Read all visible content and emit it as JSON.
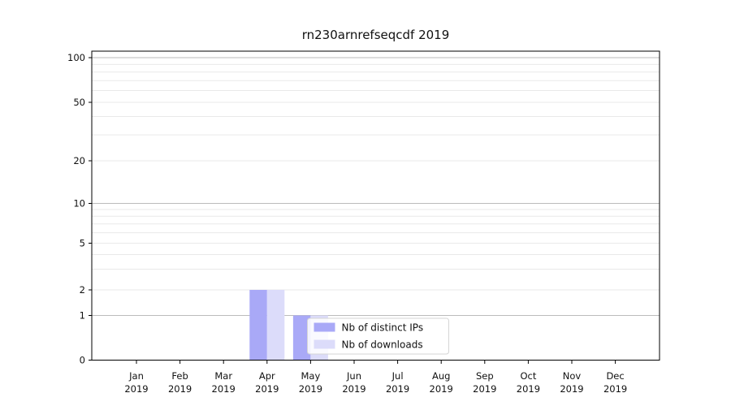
{
  "title": "rn230arnrefseqcdf 2019",
  "chart_data": {
    "type": "bar",
    "title": "rn230arnrefseqcdf 2019",
    "categories": [
      "Jan",
      "Feb",
      "Mar",
      "Apr",
      "May",
      "Jun",
      "Jul",
      "Aug",
      "Sep",
      "Oct",
      "Nov",
      "Dec"
    ],
    "year_label": "2019",
    "series": [
      {
        "name": "Nb of distinct IPs",
        "color": "#a9a9f7",
        "values": [
          0,
          0,
          0,
          2,
          1,
          0,
          0,
          0,
          0,
          0,
          0,
          0
        ]
      },
      {
        "name": "Nb of downloads",
        "color": "#dcdcfa",
        "values": [
          0,
          0,
          0,
          2,
          1,
          0,
          0,
          0,
          0,
          0,
          0,
          0
        ]
      }
    ],
    "xlabel": "",
    "ylabel": "",
    "yscale": "symlog",
    "ylim": [
      0,
      110
    ],
    "y_tick_labels": [
      0,
      1,
      2,
      5,
      10,
      20,
      50,
      100
    ],
    "y_major_gridlines": [
      1,
      10,
      100
    ],
    "y_minor_gridlines": [
      2,
      3,
      4,
      5,
      6,
      7,
      8,
      9,
      20,
      30,
      40,
      50,
      60,
      70,
      80,
      90
    ],
    "grid": "horizontal",
    "legend": {
      "entries": [
        "Nb of distinct IPs",
        "Nb of downloads"
      ],
      "position": "inside-bottom-center"
    },
    "colors": {
      "background": "#ffffff",
      "spine": "#000000",
      "tick_text": "#111111",
      "grid_major": "#bbbbbb",
      "grid_minor": "#e9e9e9",
      "legend_border": "#d5d5d5",
      "legend_background": "#ffffff"
    }
  }
}
